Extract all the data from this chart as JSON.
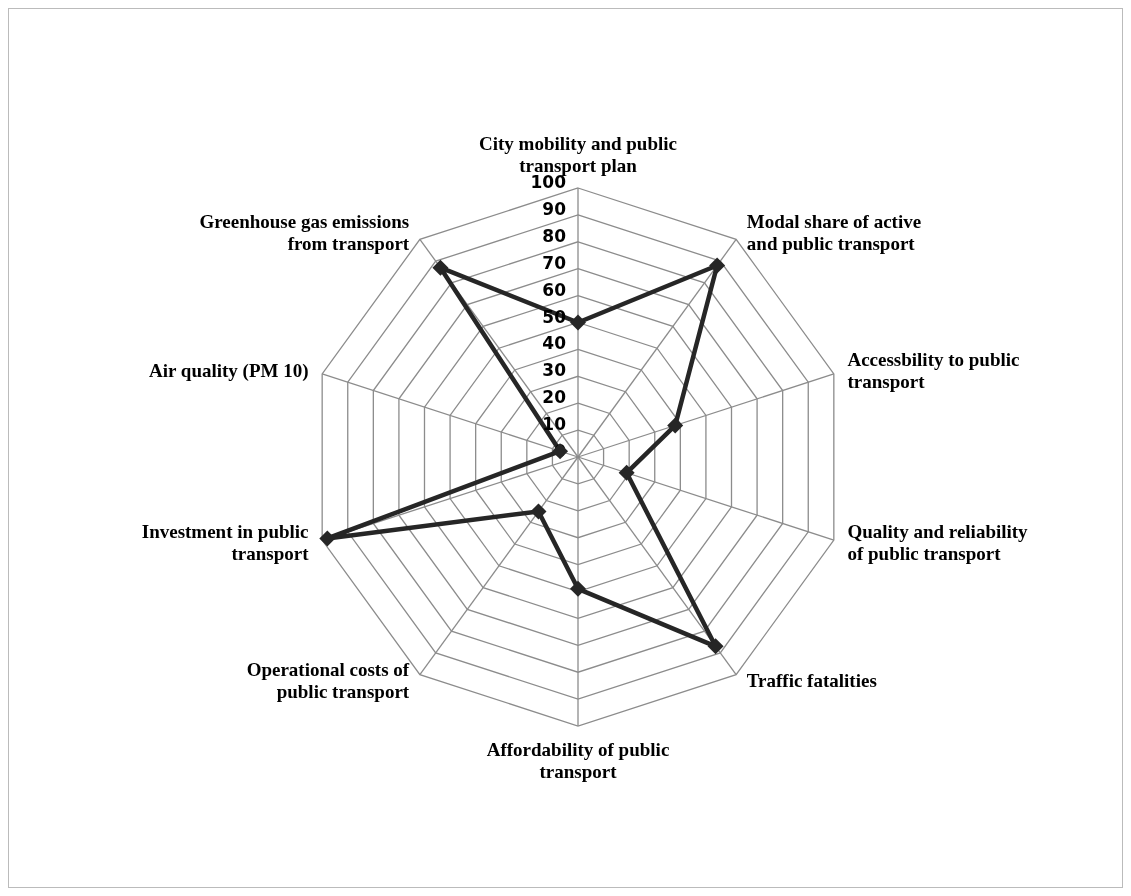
{
  "chart_data": {
    "type": "radar",
    "categories": [
      "City mobility and public transport plan",
      "Modal share of active and public transport",
      "Accessbility to public transport",
      "Quality and reliability of public transport",
      "Traffic fatalities",
      "Affordability of public transport",
      "Operational costs of public transport",
      "Investment in public transport",
      "Air quality (PM 10)",
      "Greenhouse gas emissions from transport"
    ],
    "series": [
      {
        "color": "#262626",
        "values": [
          50,
          88,
          38,
          19,
          87,
          49,
          25,
          98,
          7,
          87
        ]
      }
    ],
    "ylim": [
      0,
      100
    ],
    "yticks": [
      0,
      10,
      20,
      30,
      40,
      50,
      60,
      70,
      80,
      90,
      100
    ],
    "grid": true,
    "marker": "diamond",
    "legend": false
  }
}
